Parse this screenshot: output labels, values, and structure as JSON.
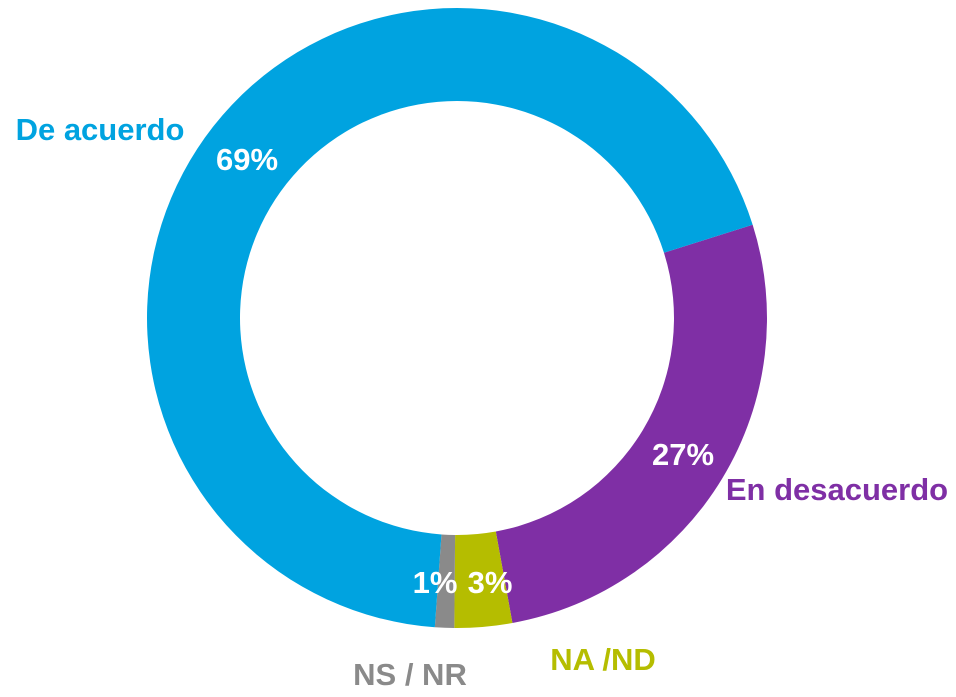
{
  "chart_data": {
    "type": "donut",
    "categories": [
      "En desacuerdo",
      "NA /ND",
      "NS / NR",
      "De acuerdo"
    ],
    "values": [
      27,
      3,
      1,
      69
    ],
    "value_labels": [
      "27%",
      "3%",
      "1%",
      "69%"
    ],
    "colors": [
      "#7f2fa5",
      "#b5bd00",
      "#8a8a8a",
      "#00a3e0"
    ]
  }
}
